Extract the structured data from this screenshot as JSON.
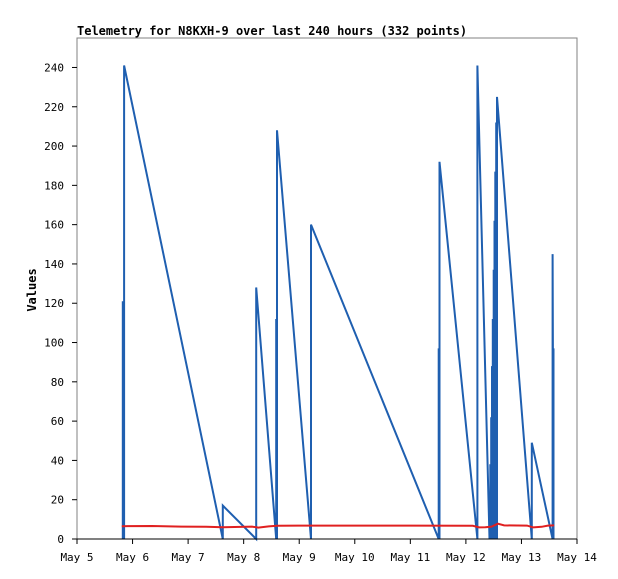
{
  "chart_data": {
    "type": "line",
    "title": "Telemetry for N8KXH-9 over last 240 hours (332 points)",
    "xlabel": "",
    "ylabel": "Values",
    "x_ticks": [
      "May 5",
      "May 6",
      "May 7",
      "May 8",
      "May 9",
      "May 10",
      "May 11",
      "May 12",
      "May 13",
      "May 14"
    ],
    "y_ticks": [
      0,
      20,
      40,
      60,
      80,
      100,
      120,
      140,
      160,
      180,
      200,
      220,
      240
    ],
    "xlim": [
      0,
      240
    ],
    "ylim": [
      0,
      255
    ],
    "grid": false,
    "series": [
      {
        "color": "#1f5fb0",
        "points": [
          [
            22.0,
            0
          ],
          [
            22.0,
            121
          ],
          [
            22.6,
            0
          ],
          [
            22.6,
            241
          ],
          [
            70.0,
            0
          ],
          [
            70.0,
            17
          ],
          [
            86.0,
            0
          ],
          [
            86.0,
            128
          ],
          [
            95.6,
            0
          ],
          [
            95.6,
            112
          ],
          [
            96.0,
            0
          ],
          [
            96.0,
            208
          ],
          [
            112.3,
            0
          ],
          [
            112.3,
            160
          ],
          [
            173.6,
            0
          ],
          [
            173.6,
            97
          ],
          [
            174.0,
            0
          ],
          [
            174.0,
            192
          ],
          [
            192.2,
            0
          ],
          [
            192.2,
            241
          ],
          [
            198.0,
            0
          ],
          [
            198.0,
            13
          ],
          [
            198.4,
            0
          ],
          [
            198.4,
            38
          ],
          [
            198.8,
            0
          ],
          [
            198.8,
            62
          ],
          [
            199.2,
            0
          ],
          [
            199.2,
            88
          ],
          [
            199.6,
            0
          ],
          [
            199.6,
            112
          ],
          [
            200.0,
            0
          ],
          [
            200.0,
            137
          ],
          [
            200.4,
            0
          ],
          [
            200.4,
            162
          ],
          [
            200.8,
            0
          ],
          [
            200.8,
            187
          ],
          [
            201.2,
            0
          ],
          [
            201.2,
            212
          ],
          [
            201.6,
            0
          ],
          [
            201.6,
            225
          ],
          [
            218.3,
            0
          ],
          [
            218.3,
            49
          ],
          [
            228.3,
            0
          ],
          [
            228.3,
            145
          ],
          [
            228.7,
            0
          ],
          [
            228.7,
            97
          ]
        ]
      },
      {
        "color": "#e02020",
        "points": [
          [
            21.5,
            6.5
          ],
          [
            36,
            6.6
          ],
          [
            50,
            6.3
          ],
          [
            62,
            6.2
          ],
          [
            70,
            6.0
          ],
          [
            84,
            6.3
          ],
          [
            87,
            5.8
          ],
          [
            92,
            6.4
          ],
          [
            96,
            6.7
          ],
          [
            106,
            6.8
          ],
          [
            130,
            6.8
          ],
          [
            160,
            6.8
          ],
          [
            190,
            6.7
          ],
          [
            193,
            5.9
          ],
          [
            196,
            6.0
          ],
          [
            199,
            6.3
          ],
          [
            202,
            7.8
          ],
          [
            205,
            6.9
          ],
          [
            216,
            6.8
          ],
          [
            219,
            5.9
          ],
          [
            223,
            6.2
          ],
          [
            226,
            6.8
          ],
          [
            229,
            6.9
          ]
        ]
      }
    ]
  }
}
